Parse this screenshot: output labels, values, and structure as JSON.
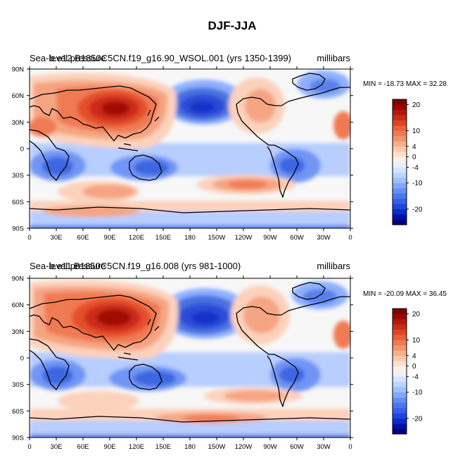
{
  "figure_title": "DJF-JJA",
  "colors": {
    "negative_darkest": "#00007f",
    "positive_darkest": "#7f0000",
    "neutral": "#f7f7f7"
  },
  "chart_data": [
    {
      "type": "heatmap",
      "variable": "Sea-level pressure",
      "case": "b.e12.B1850C5CN.f19_g16.90_WSOL.001 (yrs 1350-1399)",
      "left_title_overprint": [
        "Sea-level pressure",
        "b.e12.B1850C5CN.f19_g16.90_WSOL.001 (yrs 1350-1399)"
      ],
      "units": "millibars",
      "min": -18.73,
      "max": 32.28,
      "stats_label": "MIN = -18.73 MAX =  32.28",
      "x_ticks": [
        "0",
        "30E",
        "60E",
        "90E",
        "120E",
        "150E",
        "180",
        "150W",
        "120W",
        "90W",
        "60W",
        "30W",
        "0"
      ],
      "y_ticks": [
        "90N",
        "60N",
        "30N",
        "0",
        "30S",
        "60S",
        "90S"
      ],
      "contour_levels": [
        -24,
        -22,
        -20,
        -18,
        -16,
        -14,
        -12,
        -10,
        -8,
        -6,
        -4,
        -2,
        0,
        2,
        4,
        6,
        8,
        10,
        12,
        14,
        16,
        18,
        20,
        22,
        24
      ],
      "colorbar_labels": [
        "20",
        "10",
        "4",
        "0",
        "-4",
        "-10",
        "-20"
      ]
    },
    {
      "type": "heatmap",
      "variable": "Sea-level pressure",
      "case": "b.e11.B1850C5CN.f19_g16.008 (yrs 981-1000)",
      "left_title_overprint": [
        "Sea-level pressure",
        "b.e11.B1850C5CN.f19_g16.008 (yrs 981-1000)"
      ],
      "units": "millibars",
      "min": -20.09,
      "max": 36.45,
      "stats_label": "MIN = -20.09 MAX =  36.45",
      "x_ticks": [
        "0",
        "30E",
        "60E",
        "90E",
        "120E",
        "150E",
        "180",
        "150W",
        "120W",
        "90W",
        "60W",
        "30W",
        "0"
      ],
      "y_ticks": [
        "90N",
        "60N",
        "30N",
        "0",
        "30S",
        "60S",
        "90S"
      ],
      "contour_levels": [
        -24,
        -22,
        -20,
        -18,
        -16,
        -14,
        -12,
        -10,
        -8,
        -6,
        -4,
        -2,
        0,
        2,
        4,
        6,
        8,
        10,
        12,
        14,
        16,
        18,
        20,
        22,
        24
      ],
      "colorbar_labels": [
        "20",
        "10",
        "4",
        "0",
        "-4",
        "-10",
        "-20"
      ]
    }
  ]
}
